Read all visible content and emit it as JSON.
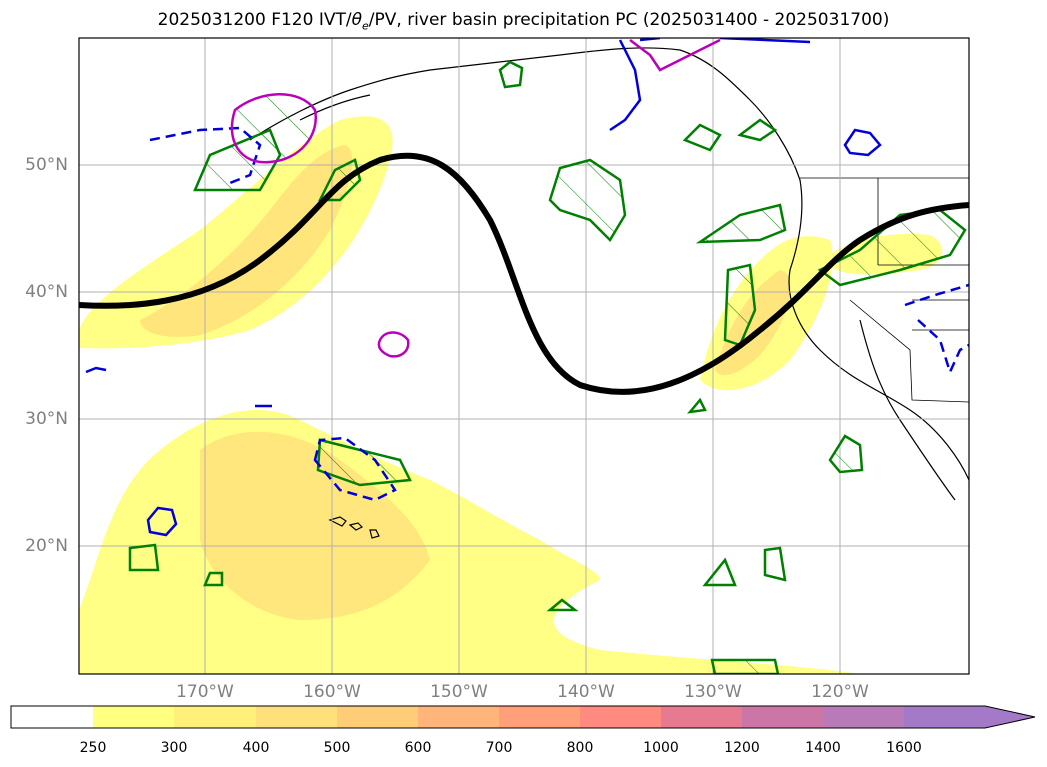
{
  "title": {
    "prefix": "2025031200 F120 IVT/",
    "theta": "θ",
    "theta_sub": "e",
    "suffix": "/PV, river basin precipitation PC (2025031400 - 2025031700)"
  },
  "lat_labels": [
    "50°N",
    "40°N",
    "30°N",
    "20°N"
  ],
  "lon_labels": [
    "170°W",
    "160°W",
    "150°W",
    "140°W",
    "130°W",
    "120°W"
  ],
  "colorbar": {
    "levels": [
      "250",
      "300",
      "400",
      "500",
      "600",
      "700",
      "800",
      "1000",
      "1200",
      "1400",
      "1600"
    ],
    "colors": [
      "#ffffff",
      "#ffff80",
      "#fff07a",
      "#ffe07a",
      "#ffcc78",
      "#ffb47a",
      "#ffa07a",
      "#ff8a80",
      "#e77a90",
      "#cc76a8",
      "#b87ab8",
      "#a47ac8"
    ]
  },
  "colors": {
    "ivt_fill_low": "#ffff80",
    "ivt_fill_mid": "#ffe880",
    "ivt_fill_high": "#ffd67a",
    "precip_contour": "#008000",
    "pv_contour": "#0000dd",
    "theta_contour": "#bb00bb",
    "jet_line": "#000000"
  }
}
